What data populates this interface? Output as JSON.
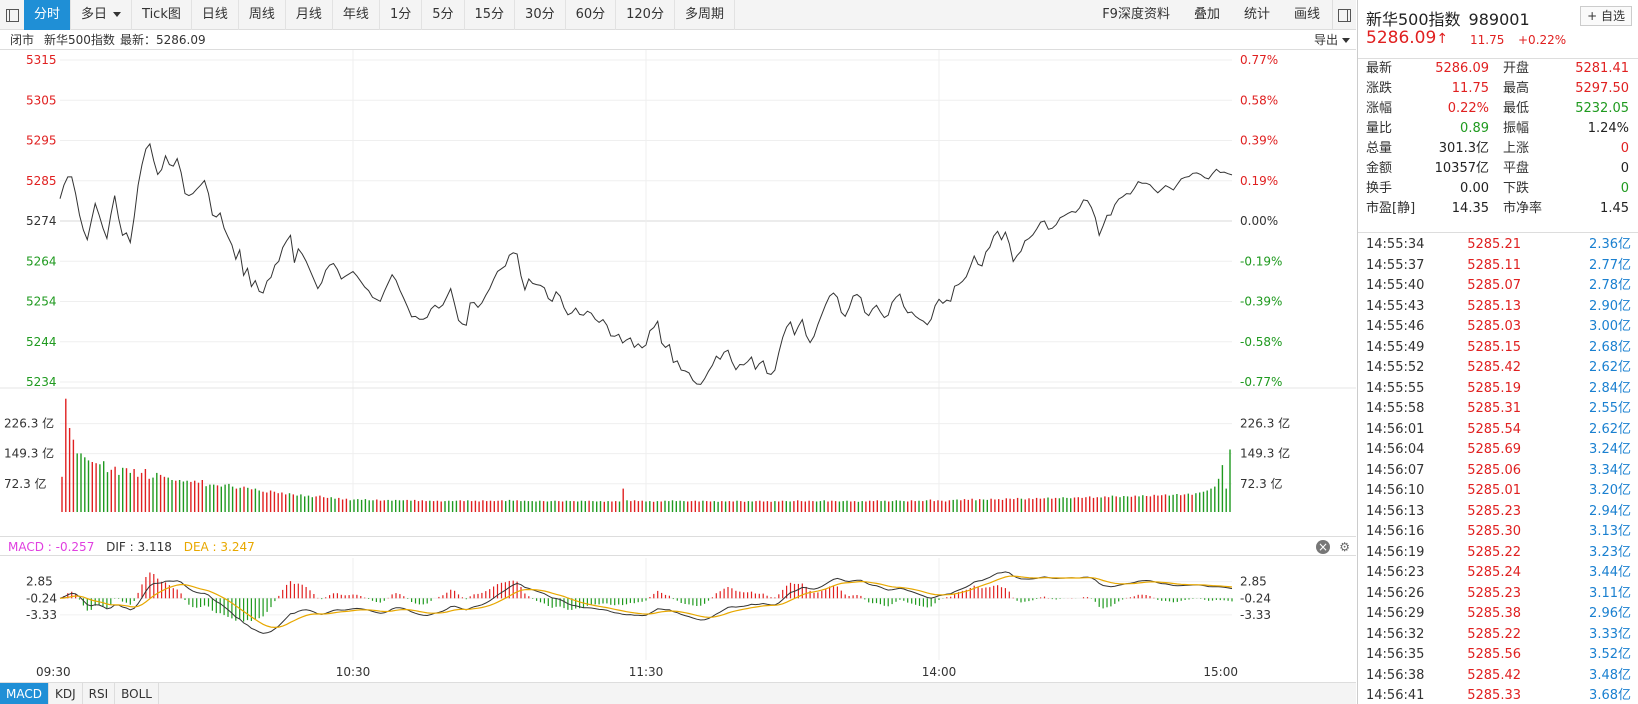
{
  "toolbar": {
    "tabs": [
      "分时",
      "多日",
      "Tick图",
      "日线",
      "周线",
      "月线",
      "年线",
      "1分",
      "5分",
      "15分",
      "30分",
      "60分",
      "120分",
      "多周期"
    ],
    "active_tab": "分时",
    "right_tools": [
      "F9深度资料",
      "叠加",
      "统计",
      "画线"
    ]
  },
  "infobar": {
    "status": "闭市",
    "index_name": "新华500指数",
    "latest_label": "最新：5286.09",
    "export_label": "导出"
  },
  "chart_data": {
    "type": "line",
    "title": "",
    "x_ticks": [
      "09:30",
      "10:30",
      "11:30",
      "14:00",
      "15:00"
    ],
    "price_axis": {
      "left_ticks": [
        "5315",
        "5305",
        "5295",
        "5285",
        "5274",
        "5264",
        "5254",
        "5244",
        "5234"
      ],
      "right_ticks": [
        "0.77%",
        "0.58%",
        "0.39%",
        "0.19%",
        "0.00%",
        "-0.19%",
        "-0.39%",
        "-0.58%",
        "-0.77%"
      ],
      "ylim": [
        5234,
        5315
      ],
      "prev_close": 5274.34
    },
    "volume_axis": {
      "ticks": [
        "226.3 亿",
        "149.3 亿",
        "72.3 亿"
      ],
      "ylim": [
        0,
        302
      ]
    },
    "macd_axis": {
      "ticks": [
        "2.85",
        "-0.24",
        "-3.33"
      ],
      "ylim": [
        -6.5,
        6.5
      ]
    },
    "price_series": [
      5280.1,
      5283.5,
      5285.6,
      5285.6,
      5281.4,
      5276,
      5272.2,
      5269.8,
      5274.5,
      5278.9,
      5276,
      5272.7,
      5270.1,
      5276,
      5280.9,
      5275.2,
      5270.9,
      5271.5,
      5269.1,
      5275.5,
      5283.5,
      5288.7,
      5292.6,
      5293.9,
      5289.6,
      5286.2,
      5287.4,
      5290.9,
      5288.7,
      5288.3,
      5290.2,
      5286.7,
      5281.4,
      5280.9,
      5281.4,
      5282.5,
      5283.5,
      5284.7,
      5281.4,
      5276,
      5275.5,
      5276.5,
      5272.7,
      5270.5,
      5268.5,
      5264.9,
      5267.2,
      5260.8,
      5262.6,
      5258,
      5259.5,
      5256.8,
      5256.4,
      5259.4,
      5260.3,
      5263.4,
      5264.4,
      5267.8,
      5269.5,
      5270.9,
      5264,
      5267.5,
      5266.2,
      5264.4,
      5262.1,
      5259.8,
      5257.5,
      5259,
      5262.1,
      5263.4,
      5263.8,
      5262.3,
      5259.9,
      5260.6,
      5261.2,
      5261.8,
      5260.7,
      5259.3,
      5257.9,
      5257,
      5255.3,
      5254.8,
      5254.3,
      5256.8,
      5258.9,
      5261,
      5259.6,
      5257.1,
      5255,
      5252.8,
      5250.4,
      5250.5,
      5249.8,
      5249.8,
      5250.3,
      5252.4,
      5253.3,
      5252.6,
      5253.4,
      5255.4,
      5257.5,
      5253.6,
      5249.5,
      5248.6,
      5248.3,
      5253.9,
      5254,
      5252.8,
      5253.9,
      5255.8,
      5257.5,
      5259.8,
      5261.8,
      5262.5,
      5263.2,
      5265.9,
      5266.5,
      5266.2,
      5260.7,
      5257.2,
      5259.9,
      5258.8,
      5258.5,
      5258.3,
      5257.7,
      5255,
      5254.3,
      5256.7,
      5255.6,
      5252.7,
      5250.9,
      5251.4,
      5252.6,
      5251,
      5250.8,
      5251.8,
      5251.3,
      5249.8,
      5249,
      5249.7,
      5248.3,
      5245.6,
      5245.5,
      5246,
      5243.8,
      5244.6,
      5245.1,
      5242.7,
      5243.6,
      5242.6,
      5243.3,
      5246.9,
      5247.7,
      5249.3,
      5243.8,
      5242.7,
      5243.4,
      5238.9,
      5239.3,
      5237,
      5236.8,
      5236.3,
      5234.4,
      5233.5,
      5233.4,
      5234.8,
      5236.7,
      5238.2,
      5240.5,
      5239.7,
      5241.5,
      5242,
      5239.1,
      5237.1,
      5238.4,
      5238.3,
      5239.1,
      5240.3,
      5237.2,
      5238.6,
      5239.3,
      5236.2,
      5235.9,
      5237,
      5241.4,
      5245.2,
      5247.8,
      5249.1,
      5245.9,
      5248,
      5249.7,
      5245.7,
      5243.9,
      5245.5,
      5248.5,
      5251,
      5253.5,
      5255.6,
      5256.4,
      5255.3,
      5251.5,
      5250.5,
      5252.6,
      5255.6,
      5256,
      5255.2,
      5251.5,
      5250.7,
      5252.4,
      5253.3,
      5251.6,
      5250.2,
      5250.8,
      5254,
      5255.3,
      5256.1,
      5253,
      5251.4,
      5251.6,
      5250.5,
      5249.8,
      5249.3,
      5248.4,
      5249.8,
      5253.2,
      5254.8,
      5253.8,
      5254.6,
      5254.3,
      5258.1,
      5258.5,
      5259.3,
      5260.5,
      5263,
      5265.7,
      5263.6,
      5263.2,
      5266.7,
      5267.9,
      5270.7,
      5271.9,
      5269.8,
      5271.7,
      5268.8,
      5264.3,
      5265.8,
      5266.9,
      5269.5,
      5270.1,
      5271,
      5272.5,
      5274.2,
      5274.5,
      5272.4,
      5272.7,
      5273.6,
      5275.3,
      5275.8,
      5276.4,
      5276.9,
      5276.7,
      5277.8,
      5279.8,
      5279.6,
      5277.9,
      5275.3,
      5270.9,
      5273.3,
      5275.9,
      5276,
      5278.6,
      5280,
      5280.6,
      5281.4,
      5281.3,
      5282.7,
      5284.4,
      5284,
      5284,
      5283.6,
      5282.5,
      5281.6,
      5282.5,
      5283.4,
      5282.9,
      5282.3,
      5283.7,
      5285.1,
      5285.5,
      5285.7,
      5286.5,
      5286.6,
      5286.2,
      5285.4,
      5285.1,
      5286.4,
      5287.5,
      5286.7,
      5286.8,
      5286.4,
      5286.1
    ],
    "volume_series": [
      90,
      290,
      215,
      185,
      150,
      150,
      140,
      132,
      128,
      125,
      122,
      130,
      102,
      108,
      116,
      95,
      113,
      112,
      100,
      110,
      90,
      100,
      110,
      85,
      88,
      100,
      95,
      90,
      88,
      82,
      80,
      82,
      78,
      80,
      77,
      80,
      75,
      82,
      66,
      70,
      70,
      68,
      65,
      70,
      72,
      65,
      60,
      62,
      65,
      62,
      58,
      60,
      55,
      52,
      50,
      55,
      52,
      48,
      50,
      45,
      48,
      45,
      42,
      45,
      40,
      42,
      38,
      40,
      42,
      38,
      36,
      38,
      34,
      36,
      32,
      34,
      30,
      32,
      33,
      31,
      33,
      30,
      30,
      32,
      29,
      30,
      31,
      29,
      31,
      30,
      30,
      31,
      29,
      31,
      28,
      30,
      28,
      29,
      28,
      29,
      27,
      28,
      29,
      28,
      29,
      30,
      28,
      30,
      28,
      29,
      27,
      30,
      28,
      29,
      28,
      29,
      30,
      28,
      31,
      29,
      30,
      28,
      29,
      28,
      28,
      27,
      29,
      28,
      27,
      28,
      29,
      28,
      27,
      29,
      28,
      28,
      27,
      29,
      28,
      29,
      28,
      27,
      28,
      26,
      28,
      27,
      28,
      27,
      60,
      30,
      28,
      30,
      28,
      29,
      27,
      28,
      26,
      28,
      27,
      29,
      28,
      30,
      28,
      29,
      28,
      27,
      28,
      29,
      27,
      29,
      28,
      27,
      28,
      26,
      28,
      27,
      28,
      27,
      29,
      28,
      26,
      28,
      27,
      28,
      29,
      27,
      28,
      26,
      28,
      27,
      29,
      28,
      27,
      28,
      30,
      28,
      27,
      29,
      28,
      27,
      28,
      30,
      27,
      29,
      28,
      27,
      28,
      29,
      27,
      28,
      26,
      28,
      27,
      29,
      28,
      30,
      28,
      29,
      27,
      28,
      30,
      29,
      28,
      27,
      30,
      28,
      29,
      28,
      30,
      32,
      28,
      30,
      29,
      27,
      30,
      31,
      32,
      30,
      33,
      31,
      34,
      30,
      33,
      32,
      31,
      34,
      32,
      33,
      31,
      35,
      34,
      33,
      36,
      34,
      32,
      35,
      33,
      36,
      34,
      35,
      37,
      34,
      36,
      35,
      38,
      36,
      35,
      37,
      38,
      36,
      38,
      40,
      36,
      38,
      37,
      40,
      38,
      42,
      40,
      38,
      41,
      40,
      39,
      42,
      40,
      43,
      41,
      40,
      44,
      42,
      43,
      45,
      42,
      44,
      46,
      43,
      45,
      47,
      44,
      48,
      50,
      52,
      55,
      60,
      65,
      85,
      120,
      60,
      160
    ]
  },
  "macd": {
    "label_macd": "MACD : -0.257",
    "label_dif": "DIF : 3.118",
    "label_dea": "DEA : 3.247"
  },
  "indicator_tabs": [
    "MACD",
    "KDJ",
    "RSI",
    "BOLL"
  ],
  "right_panel": {
    "title": "新华500指数",
    "code": "989001",
    "watch_label": "+ 自选",
    "price": "5286.09",
    "arrow": "↑",
    "change": "11.75",
    "change_pct": "+0.22%",
    "quote_rows": [
      {
        "l1": "最新",
        "v1": "5286.09",
        "c1": "red",
        "l2": "开盘",
        "v2": "5281.41",
        "c2": "red"
      },
      {
        "l1": "涨跌",
        "v1": "11.75",
        "c1": "red",
        "l2": "最高",
        "v2": "5297.50",
        "c2": "red"
      },
      {
        "l1": "涨幅",
        "v1": "0.22%",
        "c1": "red",
        "l2": "最低",
        "v2": "5232.05",
        "c2": "green"
      },
      {
        "l1": "量比",
        "v1": "0.89",
        "c1": "green",
        "l2": "振幅",
        "v2": "1.24%",
        "c2": "black"
      },
      {
        "l1": "总量",
        "v1": "301.3亿",
        "c1": "black",
        "l2": "上涨",
        "v2": "0",
        "c2": "red"
      },
      {
        "l1": "金额",
        "v1": "10357亿",
        "c1": "black",
        "l2": "平盘",
        "v2": "0",
        "c2": "black"
      },
      {
        "l1": "换手",
        "v1": "0.00",
        "c1": "black",
        "l2": "下跌",
        "v2": "0",
        "c2": "green"
      },
      {
        "l1": "市盈[静]",
        "v1": "14.35",
        "c1": "black",
        "l2": "市净率",
        "v2": "1.45",
        "c2": "black"
      }
    ],
    "ticks": [
      {
        "time": "14:55:34",
        "price": "5285.21",
        "vol": "2.36亿"
      },
      {
        "time": "14:55:37",
        "price": "5285.11",
        "vol": "2.77亿"
      },
      {
        "time": "14:55:40",
        "price": "5285.07",
        "vol": "2.78亿"
      },
      {
        "time": "14:55:43",
        "price": "5285.13",
        "vol": "2.90亿"
      },
      {
        "time": "14:55:46",
        "price": "5285.03",
        "vol": "3.00亿"
      },
      {
        "time": "14:55:49",
        "price": "5285.15",
        "vol": "2.68亿"
      },
      {
        "time": "14:55:52",
        "price": "5285.42",
        "vol": "2.62亿"
      },
      {
        "time": "14:55:55",
        "price": "5285.19",
        "vol": "2.84亿"
      },
      {
        "time": "14:55:58",
        "price": "5285.31",
        "vol": "2.55亿"
      },
      {
        "time": "14:56:01",
        "price": "5285.54",
        "vol": "2.62亿"
      },
      {
        "time": "14:56:04",
        "price": "5285.69",
        "vol": "3.24亿"
      },
      {
        "time": "14:56:07",
        "price": "5285.06",
        "vol": "3.34亿"
      },
      {
        "time": "14:56:10",
        "price": "5285.01",
        "vol": "3.20亿"
      },
      {
        "time": "14:56:13",
        "price": "5285.23",
        "vol": "2.94亿"
      },
      {
        "time": "14:56:16",
        "price": "5285.30",
        "vol": "3.13亿"
      },
      {
        "time": "14:56:19",
        "price": "5285.22",
        "vol": "3.23亿"
      },
      {
        "time": "14:56:23",
        "price": "5285.24",
        "vol": "3.44亿"
      },
      {
        "time": "14:56:26",
        "price": "5285.23",
        "vol": "3.11亿"
      },
      {
        "time": "14:56:29",
        "price": "5285.38",
        "vol": "2.96亿"
      },
      {
        "time": "14:56:32",
        "price": "5285.22",
        "vol": "3.33亿"
      },
      {
        "time": "14:56:35",
        "price": "5285.56",
        "vol": "3.52亿"
      },
      {
        "time": "14:56:38",
        "price": "5285.42",
        "vol": "3.48亿"
      },
      {
        "time": "14:56:41",
        "price": "5285.33",
        "vol": "3.68亿"
      }
    ]
  },
  "colors": {
    "accent": "#1f8fd6",
    "up": "#e02020",
    "down": "#1f9a1f",
    "price_line": "#333333",
    "dea_line": "#e8a800",
    "macd_label": "#e040e0",
    "tick_volume": "#1a80d0"
  }
}
